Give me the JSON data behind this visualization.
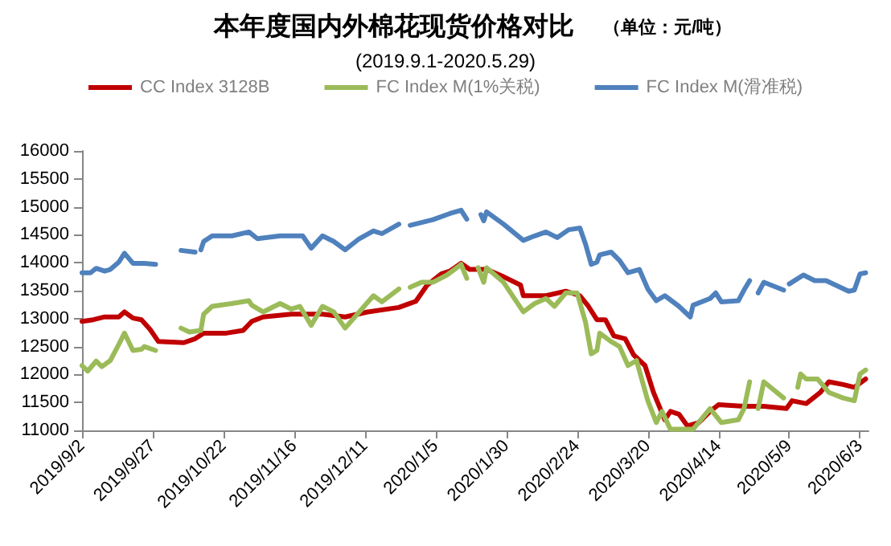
{
  "chart_data": {
    "type": "line",
    "title": "本年度国内外棉花现货价格对比",
    "subtitle": "(2019.9.1-2020.5.29)",
    "annotations": [
      "（单位：元/吨）"
    ],
    "legend": "top",
    "grid": false,
    "marker": "none",
    "line_style": "solid",
    "xlim": [
      "2019-09-02",
      "2020-06-06"
    ],
    "xticks": [
      {
        "value": "2019-09-02",
        "label": "2019/9/2"
      },
      {
        "value": "2019-09-27",
        "label": "2019/9/27"
      },
      {
        "value": "2019-10-22",
        "label": "2019/10/22"
      },
      {
        "value": "2019-11-16",
        "label": "2019/11/16"
      },
      {
        "value": "2019-12-11",
        "label": "2019/12/11"
      },
      {
        "value": "2020-01-05",
        "label": "2020/1/5"
      },
      {
        "value": "2020-01-30",
        "label": "2020/1/30"
      },
      {
        "value": "2020-02-24",
        "label": "2020/2/24"
      },
      {
        "value": "2020-03-20",
        "label": "2020/3/20"
      },
      {
        "value": "2020-04-14",
        "label": "2020/4/14"
      },
      {
        "value": "2020-05-09",
        "label": "2020/5/9"
      },
      {
        "value": "2020-06-03",
        "label": "2020/6/3"
      }
    ],
    "ylim": [
      11000,
      16000
    ],
    "yticks": [
      11000,
      11500,
      12000,
      12500,
      13000,
      13500,
      14000,
      14500,
      15000,
      15500,
      16000
    ],
    "series": [
      {
        "name": "CC Index 3128B",
        "color": "#c00000",
        "x": [
          "2019-09-02",
          "2019-09-06",
          "2019-09-10",
          "2019-09-15",
          "2019-09-17",
          "2019-09-20",
          "2019-09-23",
          "2019-09-26",
          "2019-09-29",
          "2019-10-08",
          "2019-10-12",
          "2019-10-15",
          "2019-10-23",
          "2019-10-29",
          "2019-11-01",
          "2019-11-05",
          "2019-11-15",
          "2019-11-26",
          "2019-12-04",
          "2019-12-12",
          "2019-12-23",
          "2019-12-29",
          "2020-01-02",
          "2020-01-07",
          "2020-01-10",
          "2020-01-14",
          "2020-01-17",
          "2020-01-23",
          "2020-01-29",
          "2020-02-04",
          "2020-02-05",
          "2020-02-13",
          "2020-02-20",
          "2020-02-25",
          "2020-02-28",
          "2020-03-02",
          "2020-03-05",
          "2020-03-08",
          "2020-03-12",
          "2020-03-15",
          "2020-03-19",
          "2020-03-22",
          "2020-03-26",
          "2020-03-28",
          "2020-03-31",
          "2020-04-03",
          "2020-04-07",
          "2020-04-11",
          "2020-04-14",
          "2020-04-23",
          "2020-04-30",
          "2020-05-08",
          "2020-05-10",
          "2020-05-15",
          "2020-05-20",
          "2020-05-23",
          "2020-05-28",
          "2020-06-01",
          "2020-06-05"
        ],
        "values": [
          12950,
          12980,
          13030,
          13030,
          13120,
          13010,
          12980,
          12810,
          12590,
          12570,
          12640,
          12740,
          12740,
          12790,
          12950,
          13030,
          13080,
          13080,
          13030,
          13120,
          13200,
          13310,
          13600,
          13800,
          13850,
          13990,
          13880,
          13880,
          13750,
          13600,
          13410,
          13410,
          13490,
          13410,
          13220,
          12980,
          12980,
          12690,
          12640,
          12350,
          12160,
          11680,
          11190,
          11340,
          11290,
          11080,
          11140,
          11340,
          11460,
          11430,
          11430,
          11390,
          11530,
          11480,
          11680,
          11870,
          11820,
          11770,
          11920
        ]
      },
      {
        "name": "FC Index M(1%关税)",
        "color": "#9bbb59",
        "x": [
          "2019-09-02",
          "2019-09-04",
          "2019-09-07",
          "2019-09-09",
          "2019-09-12",
          "2019-09-15",
          "2019-09-17",
          "2019-09-20",
          "2019-09-23",
          "2019-09-24",
          "2019-09-28",
          "2019-10-02",
          "2019-10-07",
          "2019-10-10",
          "2019-10-14",
          "2019-10-15",
          "2019-10-18",
          "2019-10-25",
          "2019-10-31",
          "2019-11-01",
          "2019-11-05",
          "2019-11-11",
          "2019-11-15",
          "2019-11-18",
          "2019-11-22",
          "2019-11-26",
          "2019-11-30",
          "2019-12-04",
          "2019-12-09",
          "2019-12-14",
          "2019-12-17",
          "2019-12-23",
          "2019-12-25",
          "2019-12-27",
          "2019-12-31",
          "2020-01-04",
          "2020-01-09",
          "2020-01-14",
          "2020-01-16",
          "2020-01-18",
          "2020-01-20",
          "2020-01-22",
          "2020-01-23",
          "2020-01-29",
          "2020-02-05",
          "2020-02-09",
          "2020-02-13",
          "2020-02-16",
          "2020-02-20",
          "2020-02-24",
          "2020-02-27",
          "2020-02-29",
          "2020-03-02",
          "2020-03-03",
          "2020-03-07",
          "2020-03-10",
          "2020-03-13",
          "2020-03-16",
          "2020-03-20",
          "2020-03-23",
          "2020-03-25",
          "2020-03-28",
          "2020-04-05",
          "2020-04-11",
          "2020-04-15",
          "2020-04-21",
          "2020-04-23",
          "2020-04-25",
          "2020-04-26",
          "2020-04-28",
          "2020-04-30",
          "2020-05-07",
          "2020-05-09",
          "2020-05-12",
          "2020-05-13",
          "2020-05-15",
          "2020-05-19",
          "2020-05-23",
          "2020-05-28",
          "2020-06-01",
          "2020-06-03",
          "2020-06-05"
        ],
        "values": [
          12160,
          12060,
          12240,
          12140,
          12250,
          12540,
          12740,
          12430,
          12450,
          12500,
          12430,
          null,
          12830,
          12760,
          12790,
          13080,
          13220,
          13270,
          13320,
          13240,
          13120,
          13270,
          13170,
          13220,
          12880,
          13220,
          13120,
          12830,
          13120,
          13410,
          13300,
          13530,
          null,
          13560,
          13650,
          13650,
          13780,
          13970,
          13720,
          null,
          13910,
          13650,
          13910,
          13650,
          13120,
          13270,
          13360,
          13220,
          13460,
          13460,
          12930,
          12370,
          12430,
          12740,
          12590,
          12500,
          12160,
          12250,
          11530,
          11140,
          11340,
          11020,
          11020,
          11390,
          11140,
          11190,
          11390,
          11870,
          null,
          11390,
          11870,
          11580,
          null,
          11770,
          12010,
          11920,
          11920,
          11680,
          11580,
          11530,
          12010,
          12080
        ]
      },
      {
        "name": "FC Index M(滑准税)",
        "color": "#4f81bd",
        "x": [
          "2019-09-02",
          "2019-09-05",
          "2019-09-07",
          "2019-09-10",
          "2019-09-12",
          "2019-09-15",
          "2019-09-17",
          "2019-09-20",
          "2019-09-24",
          "2019-09-28",
          "2019-10-02",
          "2019-10-07",
          "2019-10-12",
          "2019-10-13",
          "2019-10-14",
          "2019-10-15",
          "2019-10-18",
          "2019-10-25",
          "2019-10-31",
          "2019-11-03",
          "2019-11-11",
          "2019-11-19",
          "2019-11-22",
          "2019-11-26",
          "2019-11-30",
          "2019-12-04",
          "2019-12-09",
          "2019-12-14",
          "2019-12-17",
          "2019-12-23",
          "2019-12-25",
          "2019-12-27",
          "2019-12-31",
          "2020-01-04",
          "2020-01-10",
          "2020-01-14",
          "2020-01-16",
          "2020-01-18",
          "2020-01-21",
          "2020-01-22",
          "2020-01-23",
          "2020-01-29",
          "2020-02-05",
          "2020-02-09",
          "2020-02-13",
          "2020-02-17",
          "2020-02-21",
          "2020-02-25",
          "2020-02-27",
          "2020-02-29",
          "2020-03-02",
          "2020-03-03",
          "2020-03-07",
          "2020-03-10",
          "2020-03-13",
          "2020-03-17",
          "2020-03-20",
          "2020-03-23",
          "2020-03-26",
          "2020-03-31",
          "2020-04-04",
          "2020-04-05",
          "2020-04-11",
          "2020-04-13",
          "2020-04-15",
          "2020-04-21",
          "2020-04-23",
          "2020-04-25",
          "2020-04-26",
          "2020-04-28",
          "2020-04-30",
          "2020-05-07",
          "2020-05-08",
          "2020-05-09",
          "2020-05-14",
          "2020-05-18",
          "2020-05-22",
          "2020-05-27",
          "2020-05-30",
          "2020-06-01",
          "2020-06-03",
          "2020-06-05"
        ],
        "values": [
          13820,
          13820,
          13900,
          13850,
          13880,
          14010,
          14170,
          13990,
          13990,
          13970,
          null,
          14220,
          14190,
          null,
          14230,
          14380,
          14480,
          14480,
          14550,
          14430,
          14480,
          14480,
          14260,
          14480,
          14380,
          14230,
          14430,
          14570,
          14520,
          14690,
          null,
          14670,
          14720,
          14770,
          14880,
          14940,
          14780,
          null,
          14860,
          14750,
          14910,
          14690,
          14400,
          14480,
          14550,
          14450,
          14590,
          14620,
          14330,
          13970,
          14010,
          14140,
          14190,
          14040,
          13820,
          13880,
          13530,
          13320,
          13410,
          13220,
          13030,
          13240,
          13360,
          13460,
          13300,
          13320,
          13510,
          13680,
          null,
          13460,
          13650,
          13510,
          null,
          13620,
          13780,
          13680,
          13680,
          13560,
          13490,
          13510,
          13800,
          13820
        ]
      }
    ]
  }
}
